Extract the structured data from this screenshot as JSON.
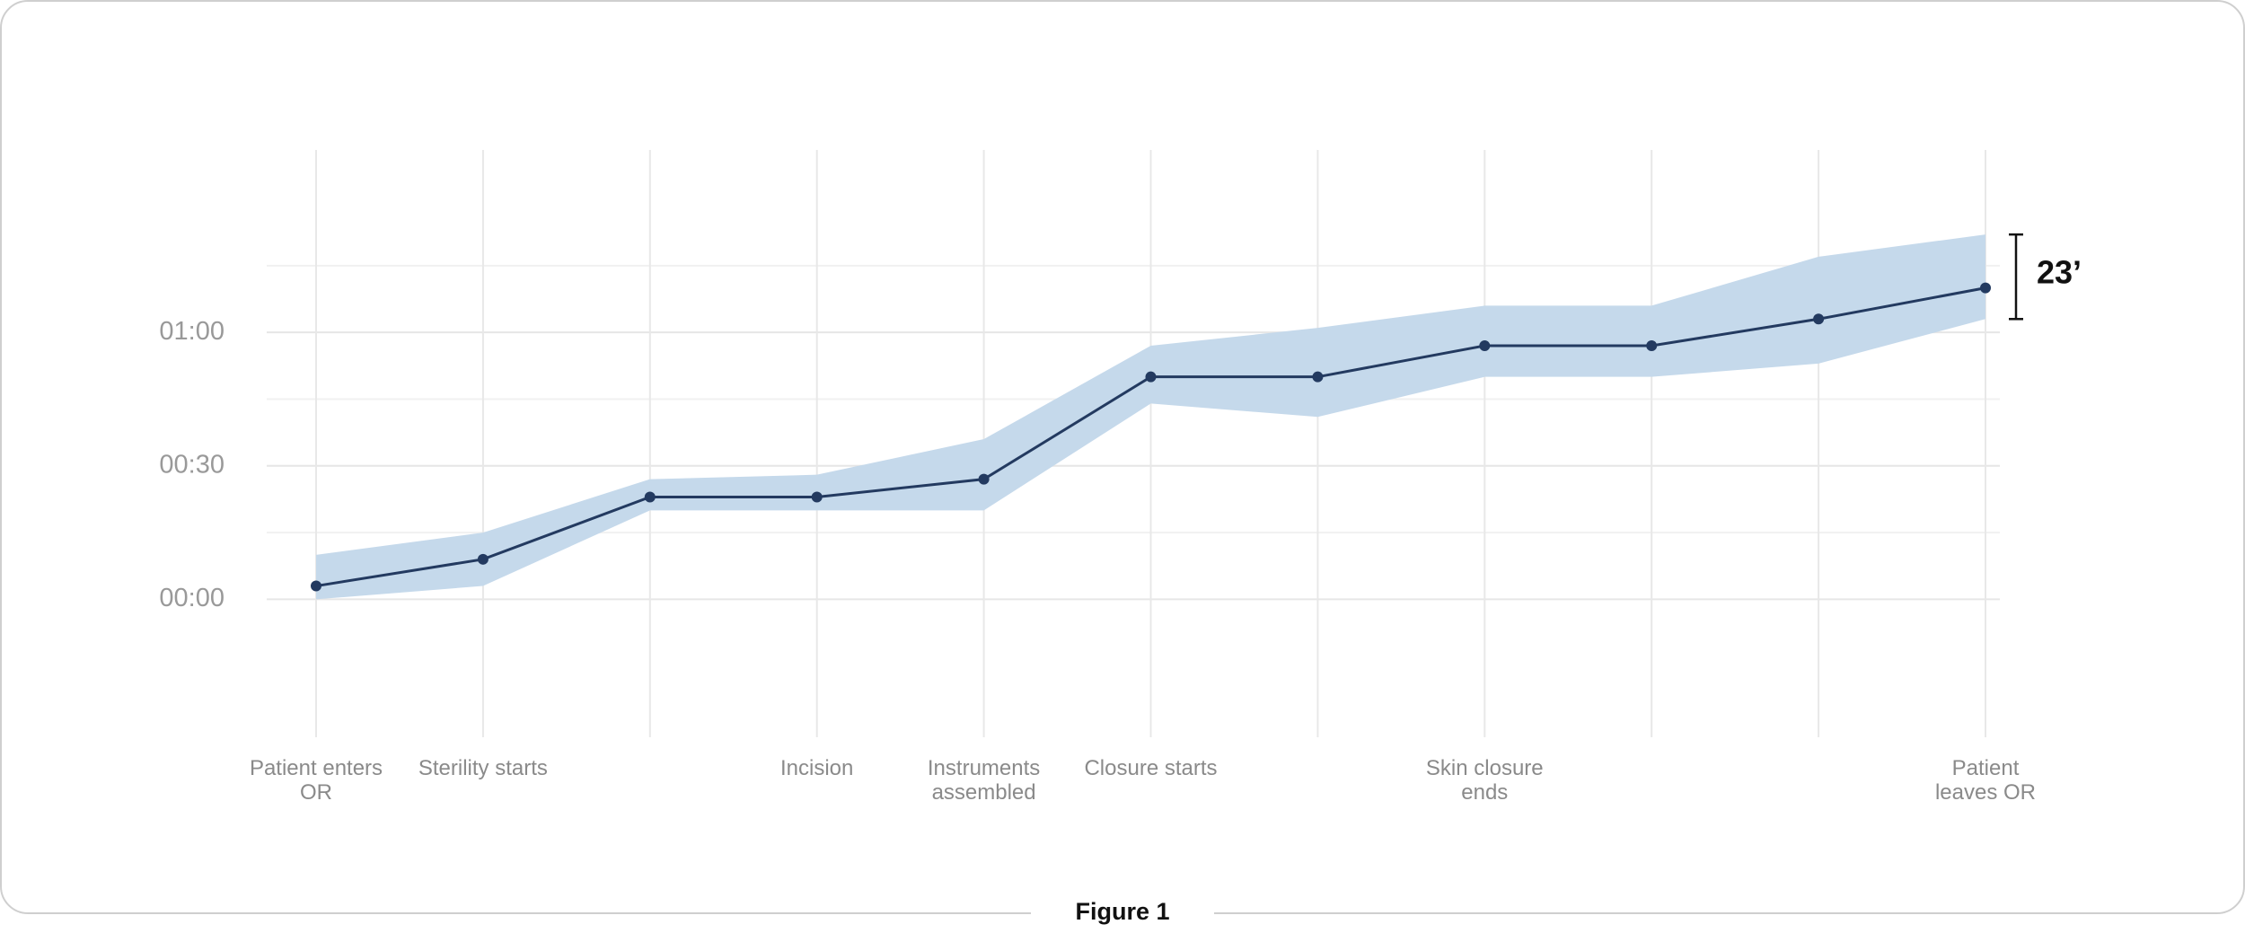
{
  "chart_data": {
    "type": "line",
    "categories": [
      "Patient enters OR",
      "Sterility starts",
      null,
      "Incision",
      "Instruments assembled",
      "Closure starts",
      null,
      "Skin closure ends",
      null,
      null,
      "Patient leaves OR"
    ],
    "values": [
      3,
      9,
      23,
      23,
      27,
      50,
      50,
      57,
      57,
      63,
      70
    ],
    "color": "#233a60",
    "band_upper": [
      10,
      15,
      27,
      28,
      36,
      57,
      61,
      66,
      66,
      77,
      82
    ],
    "band_lower": [
      0,
      3,
      20,
      20,
      20,
      44,
      41,
      50,
      50,
      53,
      63
    ],
    "band_color": "#c5d9eb",
    "ylim": [
      -31,
      101
    ],
    "yticks": [
      {
        "value": 0,
        "label": "00:00"
      },
      {
        "value": 30,
        "label": "00:30"
      },
      {
        "value": 60,
        "label": "01:00"
      }
    ],
    "y_minor_ticks": [
      15,
      45,
      75
    ],
    "grid": true,
    "annotation": "23’"
  },
  "caption": "Figure 1"
}
